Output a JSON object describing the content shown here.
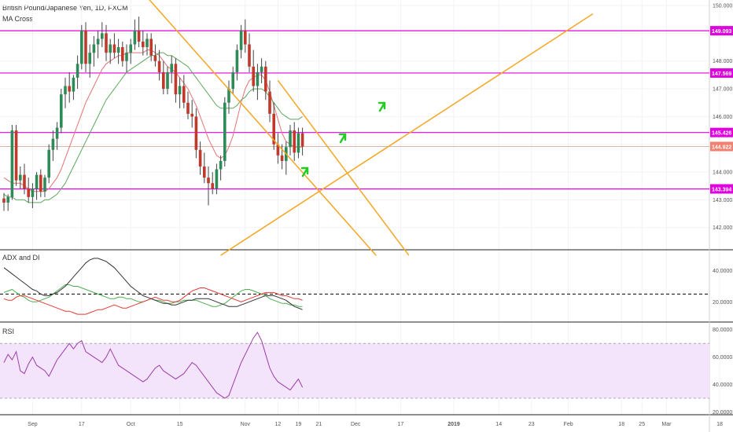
{
  "header": {
    "title": "British Pound/Japanese Yen, 1D, FXCM",
    "indicator": "MA Cross"
  },
  "colors": {
    "up": "#2e8b57",
    "down": "#c0392b",
    "wick": "#444444",
    "hline": "#e000e0",
    "trendline": "#f5a623",
    "fast_ma": "#e57373",
    "slow_ma": "#5fa85f",
    "adx": "#333333",
    "di_plus": "#4caf50",
    "di_minus": "#e53935",
    "rsi": "#9b3fa8",
    "rsi_band": "#f3e3fb",
    "last_price_tag": "#f08070",
    "arrow": "#22cc22"
  },
  "chart_data": [
    {
      "type": "candlestick",
      "name": "price",
      "ylim": [
        141.2,
        150.2
      ],
      "yticks": [
        142,
        143,
        144,
        145,
        146,
        147,
        148,
        149,
        150
      ],
      "ytick_labels": [
        "142.000",
        "143.000",
        "144.000",
        "145.000",
        "146.000",
        "147.000",
        "148.000",
        "149.000",
        "150.000"
      ],
      "xticks": [
        {
          "label": "Sep",
          "i": 7
        },
        {
          "label": "17",
          "i": 19
        },
        {
          "label": "Oct",
          "i": 31
        },
        {
          "label": "15",
          "i": 43
        },
        {
          "label": "Nov",
          "i": 59
        },
        {
          "label": "12",
          "i": 67
        },
        {
          "label": "19",
          "i": 72
        },
        {
          "label": "21",
          "i": 77
        },
        {
          "label": "Dec",
          "i": 86
        },
        {
          "label": "17",
          "i": 97
        },
        {
          "label": "2019",
          "i": 110
        },
        {
          "label": "14",
          "i": 121
        },
        {
          "label": "23",
          "i": 129
        },
        {
          "label": "Feb",
          "i": 138
        },
        {
          "label": "18",
          "i": 151
        },
        {
          "label": "25",
          "i": 156
        },
        {
          "label": "Mar",
          "i": 162
        },
        {
          "label": "18",
          "i": 175
        }
      ],
      "candles": [
        [
          143.05,
          143.25,
          142.6,
          142.9
        ],
        [
          142.9,
          143.2,
          142.6,
          143.1
        ],
        [
          143.1,
          145.7,
          143.0,
          145.5
        ],
        [
          145.5,
          145.7,
          143.5,
          143.7
        ],
        [
          143.7,
          144.2,
          143.4,
          143.9
        ],
        [
          143.9,
          144.3,
          143.2,
          143.4
        ],
        [
          143.4,
          143.8,
          142.9,
          143.1
        ],
        [
          143.1,
          143.6,
          142.7,
          143.4
        ],
        [
          143.4,
          144.0,
          143.0,
          143.9
        ],
        [
          143.9,
          144.1,
          143.1,
          143.3
        ],
        [
          143.3,
          143.9,
          143.1,
          143.8
        ],
        [
          143.8,
          145.0,
          143.6,
          144.8
        ],
        [
          144.8,
          145.5,
          144.4,
          145.2
        ],
        [
          145.2,
          145.8,
          144.8,
          145.6
        ],
        [
          145.6,
          147.0,
          145.4,
          146.8
        ],
        [
          146.8,
          147.4,
          146.3,
          147.1
        ],
        [
          147.1,
          147.6,
          146.5,
          146.9
        ],
        [
          146.9,
          147.5,
          146.6,
          147.4
        ],
        [
          147.4,
          148.2,
          147.0,
          147.9
        ],
        [
          147.9,
          149.3,
          147.7,
          149.1
        ],
        [
          149.1,
          149.4,
          147.6,
          147.9
        ],
        [
          147.9,
          148.6,
          147.4,
          148.3
        ],
        [
          148.3,
          148.9,
          147.8,
          148.6
        ],
        [
          148.6,
          149.1,
          148.1,
          148.8
        ],
        [
          148.8,
          149.4,
          148.5,
          149.0
        ],
        [
          149.0,
          149.3,
          148.0,
          148.3
        ],
        [
          148.3,
          148.8,
          147.9,
          148.6
        ],
        [
          148.6,
          149.0,
          148.1,
          148.3
        ],
        [
          148.3,
          148.8,
          147.9,
          148.5
        ],
        [
          148.5,
          148.7,
          147.8,
          148.0
        ],
        [
          148.0,
          148.6,
          147.6,
          148.3
        ],
        [
          148.3,
          148.8,
          147.9,
          148.6
        ],
        [
          148.6,
          149.5,
          148.4,
          149.1
        ],
        [
          149.1,
          149.6,
          148.5,
          148.7
        ],
        [
          148.7,
          149.1,
          148.2,
          148.5
        ],
        [
          148.5,
          149.0,
          148.2,
          148.8
        ],
        [
          148.8,
          149.0,
          148.0,
          148.2
        ],
        [
          148.2,
          148.6,
          147.8,
          148.0
        ],
        [
          148.0,
          148.4,
          147.3,
          147.6
        ],
        [
          147.6,
          148.0,
          146.8,
          147.0
        ],
        [
          147.0,
          147.8,
          146.8,
          147.6
        ],
        [
          147.6,
          148.2,
          147.2,
          147.9
        ],
        [
          147.9,
          148.1,
          146.5,
          146.8
        ],
        [
          146.8,
          147.4,
          146.3,
          147.1
        ],
        [
          147.1,
          147.5,
          146.3,
          146.5
        ],
        [
          146.5,
          146.9,
          145.9,
          146.1
        ],
        [
          146.1,
          146.6,
          145.6,
          146.0
        ],
        [
          146.0,
          146.3,
          144.5,
          144.8
        ],
        [
          144.8,
          145.1,
          143.9,
          144.2
        ],
        [
          144.2,
          144.7,
          143.6,
          143.8
        ],
        [
          143.8,
          144.2,
          142.8,
          143.6
        ],
        [
          143.6,
          144.0,
          143.2,
          143.4
        ],
        [
          143.4,
          144.3,
          143.2,
          144.1
        ],
        [
          144.1,
          144.6,
          143.7,
          144.4
        ],
        [
          144.4,
          146.7,
          144.2,
          146.5
        ],
        [
          146.5,
          147.3,
          146.1,
          147.0
        ],
        [
          147.0,
          147.8,
          146.8,
          147.6
        ],
        [
          147.6,
          148.6,
          147.3,
          148.4
        ],
        [
          148.4,
          149.3,
          148.1,
          149.1
        ],
        [
          149.1,
          149.5,
          148.3,
          148.6
        ],
        [
          148.6,
          149.0,
          147.6,
          147.8
        ],
        [
          147.8,
          148.4,
          146.9,
          147.1
        ],
        [
          147.1,
          147.9,
          146.6,
          147.6
        ],
        [
          147.6,
          148.1,
          147.2,
          147.8
        ],
        [
          147.8,
          148.0,
          146.6,
          146.9
        ],
        [
          146.9,
          147.3,
          145.8,
          146.1
        ],
        [
          146.1,
          146.5,
          144.8,
          145.0
        ],
        [
          145.0,
          145.4,
          144.3,
          144.6
        ],
        [
          144.6,
          145.0,
          144.1,
          144.4
        ],
        [
          144.4,
          145.1,
          143.9,
          144.9
        ],
        [
          144.9,
          145.7,
          144.6,
          145.5
        ],
        [
          145.5,
          145.8,
          144.4,
          144.7
        ],
        [
          144.7,
          145.6,
          144.5,
          145.4
        ],
        [
          145.4,
          145.6,
          144.6,
          144.92
        ]
      ]
    },
    {
      "type": "line",
      "name": "MA Cross",
      "series": [
        {
          "values": [
            143.8,
            143.7,
            143.6,
            143.6,
            143.6,
            143.5,
            143.4,
            143.3,
            143.3,
            143.3,
            143.3,
            143.4,
            143.6,
            143.8,
            144.1,
            144.5,
            144.9,
            145.3,
            145.7,
            146.1,
            146.5,
            146.8,
            147.1,
            147.4,
            147.7,
            147.9,
            148.0,
            148.1,
            148.2,
            148.2,
            148.3,
            148.3,
            148.3,
            148.3,
            148.3,
            148.4,
            148.4,
            148.3,
            148.2,
            148.0,
            147.8,
            147.7,
            147.6,
            147.4,
            147.2,
            147.0,
            146.7,
            146.4,
            146.0,
            145.6,
            145.2,
            144.9,
            144.6,
            144.5,
            144.6,
            144.9,
            145.3,
            145.9,
            146.5,
            147.0,
            147.3,
            147.4,
            147.5,
            147.5,
            147.3,
            146.9,
            146.4,
            145.9,
            145.4,
            145.1,
            145.0,
            144.9,
            144.9,
            144.9
          ]
        },
        {
          "values": [
            143.2,
            143.1,
            143.1,
            143.0,
            143.0,
            143.0,
            142.9,
            142.9,
            142.9,
            142.9,
            143.0,
            143.0,
            143.1,
            143.2,
            143.4,
            143.6,
            143.9,
            144.2,
            144.5,
            144.8,
            145.1,
            145.4,
            145.7,
            146.0,
            146.3,
            146.6,
            146.8,
            147.0,
            147.2,
            147.4,
            147.6,
            147.7,
            147.8,
            147.9,
            148.0,
            148.1,
            148.2,
            148.2,
            148.3,
            148.3,
            148.2,
            148.2,
            148.1,
            148.0,
            147.9,
            147.8,
            147.6,
            147.4,
            147.2,
            147.0,
            146.8,
            146.6,
            146.4,
            146.3,
            146.3,
            146.3,
            146.3,
            146.4,
            146.6,
            146.7,
            146.9,
            147.0,
            147.0,
            147.0,
            146.9,
            146.7,
            146.5,
            146.3,
            146.1,
            146.0,
            145.9,
            145.9,
            145.9,
            146.0
          ]
        }
      ]
    },
    {
      "type": "hlines",
      "levels": [
        149.093,
        147.569,
        145.426,
        143.394
      ],
      "labels": [
        "149.093",
        "147.569",
        "145.426",
        "143.394"
      ],
      "last_price": 144.922,
      "last_price_label": "144.922"
    },
    {
      "type": "line",
      "name": "trendlines",
      "lines": [
        {
          "x": [
            32,
            91
          ],
          "y": [
            150.8,
            141.0
          ]
        },
        {
          "x": [
            67,
            99
          ],
          "y": [
            147.3,
            141.0
          ]
        },
        {
          "x": [
            53,
            144
          ],
          "y": [
            141.0,
            149.7
          ]
        }
      ]
    },
    {
      "type": "line",
      "title": "ADX and DI",
      "ylim": [
        7,
        53
      ],
      "yticks": [
        20,
        40
      ],
      "ytick_labels": [
        "20.0000",
        "40.0000"
      ],
      "reference": 25,
      "series": [
        {
          "name": "ADX",
          "values": [
            42,
            40,
            38,
            36,
            34,
            32,
            30,
            28,
            27,
            25,
            24,
            24,
            25,
            26,
            28,
            30,
            33,
            36,
            39,
            42,
            45,
            47,
            48,
            48,
            47,
            46,
            44,
            42,
            39,
            36,
            33,
            30,
            28,
            26,
            24,
            23,
            22,
            21,
            20,
            19,
            19,
            18,
            18,
            19,
            20,
            21,
            21,
            22,
            22,
            22,
            22,
            21,
            20,
            19,
            18,
            17,
            17,
            17,
            18,
            19,
            20,
            21,
            22,
            23,
            24,
            24,
            24,
            23,
            22,
            21,
            19,
            17,
            16,
            15
          ]
        },
        {
          "name": "+DI",
          "values": [
            26,
            27,
            28,
            26,
            24,
            23,
            21,
            20,
            20,
            21,
            22,
            23,
            25,
            27,
            29,
            31,
            31,
            30,
            30,
            29,
            28,
            27,
            26,
            25,
            24,
            23,
            22,
            22,
            23,
            23,
            22,
            22,
            21,
            20,
            20,
            21,
            22,
            21,
            21,
            20,
            19,
            19,
            20,
            20,
            21,
            21,
            21,
            21,
            20,
            19,
            18,
            17,
            17,
            18,
            19,
            21,
            23,
            25,
            27,
            28,
            28,
            27,
            26,
            25,
            24,
            22,
            21,
            20,
            19,
            19,
            18,
            18,
            17,
            17
          ]
        },
        {
          "name": "-DI",
          "values": [
            22,
            21,
            21,
            23,
            24,
            24,
            23,
            22,
            21,
            20,
            19,
            18,
            17,
            16,
            15,
            14,
            14,
            13,
            12,
            12,
            12,
            13,
            14,
            15,
            15,
            16,
            17,
            18,
            17,
            16,
            16,
            17,
            18,
            19,
            20,
            21,
            22,
            23,
            22,
            21,
            21,
            20,
            20,
            21,
            23,
            25,
            27,
            28,
            29,
            29,
            28,
            27,
            26,
            25,
            24,
            23,
            22,
            21,
            20,
            21,
            22,
            23,
            24,
            25,
            26,
            26,
            26,
            25,
            24,
            24,
            23,
            22,
            22,
            21
          ]
        }
      ]
    },
    {
      "type": "line",
      "title": "RSI",
      "ylim": [
        18,
        85
      ],
      "yticks": [
        20,
        40,
        60,
        80
      ],
      "ytick_labels": [
        "20.0000",
        "40.0000",
        "60.0000",
        "80.0000"
      ],
      "band": [
        30,
        70
      ],
      "series": [
        {
          "name": "RSI",
          "values": [
            56,
            62,
            58,
            64,
            50,
            48,
            55,
            60,
            54,
            52,
            50,
            46,
            52,
            58,
            62,
            66,
            70,
            66,
            70,
            72,
            64,
            62,
            60,
            58,
            56,
            60,
            66,
            60,
            54,
            52,
            50,
            48,
            46,
            44,
            42,
            44,
            48,
            52,
            54,
            50,
            48,
            46,
            44,
            46,
            48,
            52,
            56,
            54,
            50,
            46,
            42,
            38,
            34,
            32,
            30,
            32,
            40,
            48,
            56,
            62,
            68,
            74,
            78,
            72,
            62,
            52,
            46,
            42,
            40,
            38,
            36,
            40,
            44,
            38
          ]
        }
      ]
    }
  ]
}
